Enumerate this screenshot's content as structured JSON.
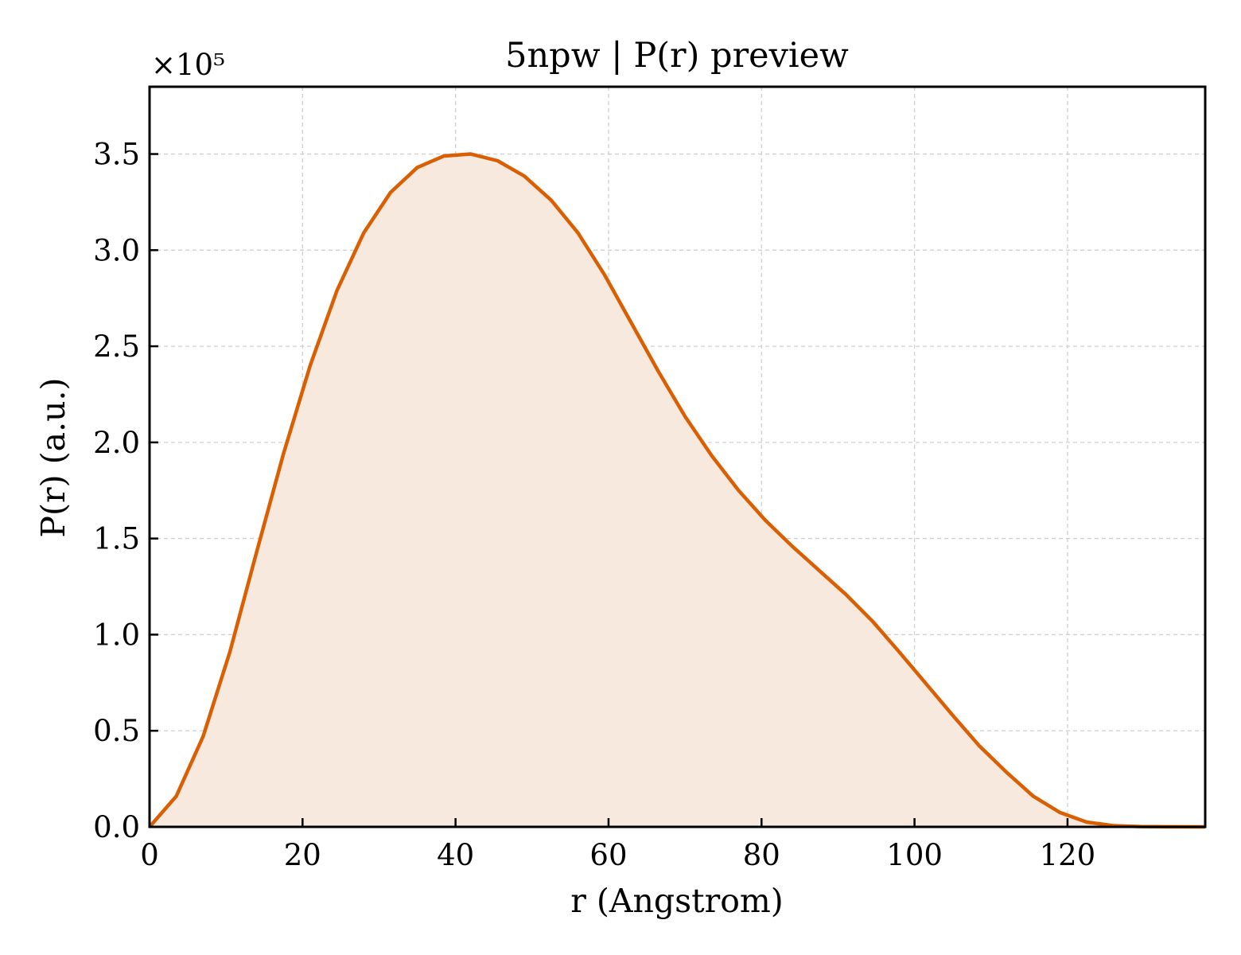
{
  "chart_data": {
    "type": "area",
    "title": "5npw | P(r) preview",
    "xlabel": "r (Angstrom)",
    "ylabel": "P(r) (a.u.)",
    "y_multiplier_label": "×10⁵",
    "y_scale_factor": 100000,
    "xlim": [
      0,
      138
    ],
    "ylim": [
      0,
      385000
    ],
    "x_ticks": [
      0,
      20,
      40,
      60,
      80,
      100,
      120
    ],
    "y_ticks": [
      0,
      50000,
      100000,
      150000,
      200000,
      250000,
      300000,
      350000
    ],
    "y_tick_labels": [
      "0.0",
      "0.5",
      "1.0",
      "1.5",
      "2.0",
      "2.5",
      "3.0",
      "3.5"
    ],
    "grid": true,
    "line_color": "#d95f02",
    "fill_color": "#f8e9df",
    "series": [
      {
        "x": [
          0,
          3.5,
          7,
          10.5,
          14,
          17.5,
          21,
          24.5,
          28,
          31.5,
          35,
          38.5,
          42,
          45.5,
          49,
          52.5,
          56,
          59.5,
          63,
          66.5,
          70,
          73.5,
          77,
          80.5,
          84,
          87.5,
          91,
          94.5,
          98,
          101.5,
          105,
          108.5,
          112,
          115.5,
          119,
          122.5,
          126,
          129.5,
          133,
          138
        ],
        "y": [
          0,
          16000,
          47000,
          91000,
          143000,
          194000,
          240000,
          279000,
          309000,
          330000,
          343000,
          349000,
          350000,
          346500,
          338500,
          326000,
          309000,
          287000,
          262000,
          237000,
          213500,
          193000,
          175000,
          159500,
          146000,
          133500,
          121000,
          107000,
          91000,
          74500,
          58000,
          42000,
          28500,
          16000,
          7500,
          2500,
          600,
          150,
          50,
          0
        ]
      }
    ]
  }
}
